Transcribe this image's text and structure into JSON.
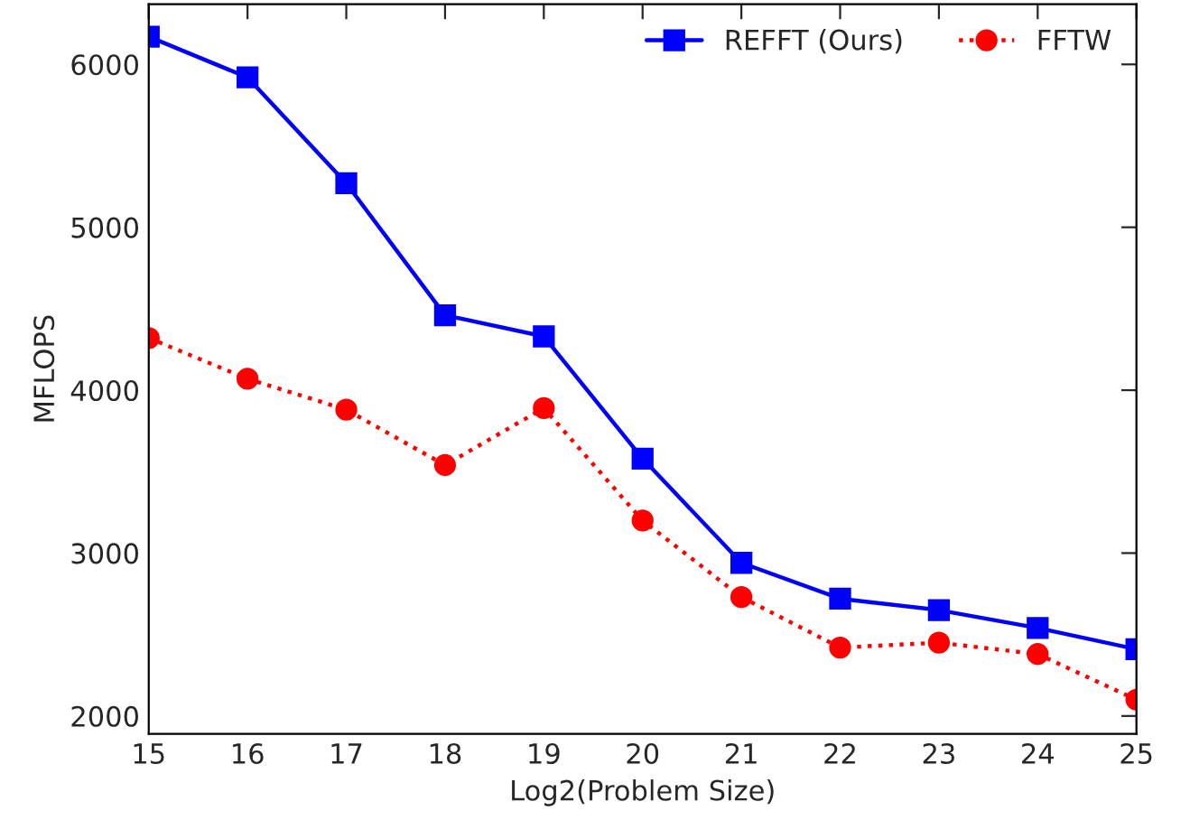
{
  "chart_data": {
    "type": "line",
    "xlabel": "Log2(Problem Size)",
    "ylabel": "MFLOPS",
    "x": [
      15,
      16,
      17,
      18,
      19,
      20,
      21,
      22,
      23,
      24,
      25
    ],
    "series": [
      {
        "name": "REFFT (Ours)",
        "color": "#0000ff",
        "marker": "square",
        "line_style": "solid",
        "values": [
          6170,
          5920,
          5270,
          4460,
          4330,
          3580,
          2940,
          2720,
          2650,
          2540,
          2410
        ]
      },
      {
        "name": "FFTW",
        "color": "#ff0000",
        "marker": "circle",
        "line_style": "dotted",
        "values": [
          4320,
          4070,
          3880,
          3540,
          3890,
          3200,
          2730,
          2420,
          2450,
          2380,
          2100
        ]
      }
    ],
    "xlim": [
      15,
      25
    ],
    "xticks": [
      15,
      16,
      17,
      18,
      19,
      20,
      21,
      22,
      23,
      24,
      25
    ],
    "ylim": [
      1890,
      6370
    ],
    "yticks": [
      2000,
      3000,
      4000,
      5000,
      6000
    ],
    "grid": false,
    "legend": "top right"
  }
}
